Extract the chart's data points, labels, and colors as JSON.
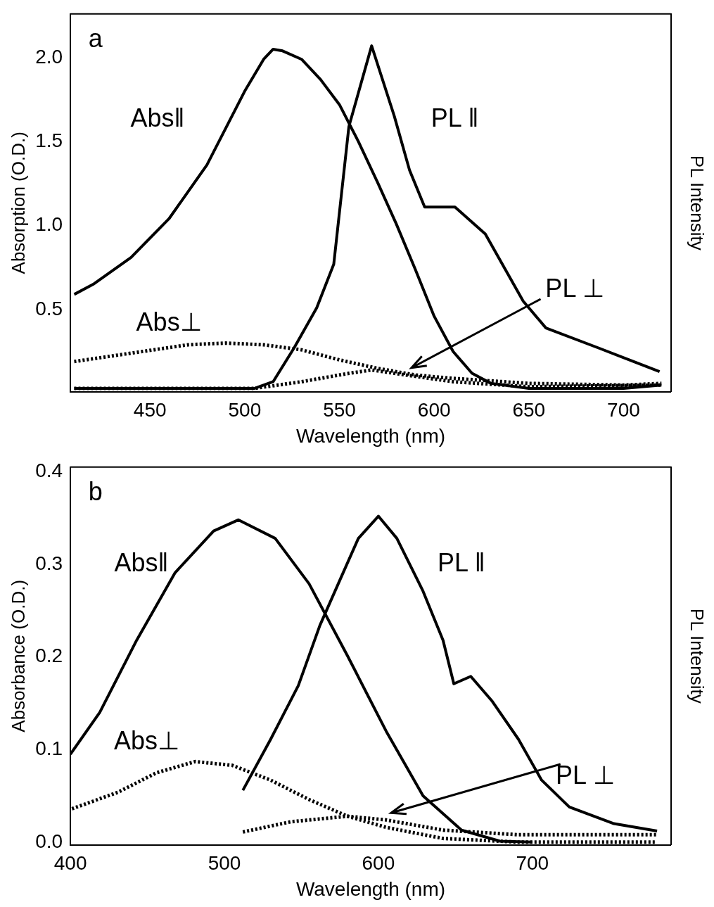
{
  "chart_data": [
    {
      "type": "line",
      "xlabel": "Wavelength (nm)",
      "ylabel": "Absorption (O.D.)",
      "y2label": "PL Intensity",
      "xlim": [
        408,
        725
      ],
      "ylim": [
        0.01,
        2.26
      ],
      "xticks": [
        450,
        500,
        550,
        600,
        650,
        700
      ],
      "yticks": [
        0.5,
        {
          "value": 1,
          "label": "1.0"
        },
        1.5,
        {
          "value": 2,
          "label": "2.0"
        }
      ],
      "legend": false,
      "grid": false,
      "annotations": [
        "a",
        "Abs‖",
        "PL ‖",
        "Abs⊥",
        "PL ⊥"
      ],
      "series": [
        {
          "color": "#000000",
          "line_style": "solid",
          "x": [
            410,
            420,
            440,
            460,
            480,
            500,
            510,
            515,
            520,
            530,
            540,
            550,
            560,
            570,
            580,
            590,
            600,
            610,
            620,
            630,
            650,
            700,
            720
          ],
          "values": [
            0.59,
            0.65,
            0.81,
            1.04,
            1.36,
            1.8,
            1.99,
            2.05,
            2.04,
            1.99,
            1.87,
            1.72,
            1.5,
            1.26,
            1.01,
            0.74,
            0.46,
            0.25,
            0.12,
            0.06,
            0.03,
            0.03,
            0.05
          ]
        },
        {
          "color": "#000000",
          "line_style": "solid",
          "x": [
            410,
            505,
            515,
            526,
            538,
            547,
            555,
            567,
            579,
            587,
            595,
            611,
            627,
            647,
            659,
            687,
            719
          ],
          "values": [
            0.03,
            0.03,
            0.07,
            0.27,
            0.51,
            0.77,
            1.59,
            2.07,
            1.65,
            1.33,
            1.11,
            1.11,
            0.95,
            0.55,
            0.39,
            0.27,
            0.13
          ]
        },
        {
          "color": "#000000",
          "line_style": "dotted",
          "x": [
            410,
            440,
            470,
            490,
            510,
            530,
            550,
            570,
            590,
            610,
            650,
            700,
            720
          ],
          "values": [
            0.19,
            0.24,
            0.29,
            0.3,
            0.29,
            0.26,
            0.2,
            0.15,
            0.11,
            0.09,
            0.06,
            0.05,
            0.06
          ]
        },
        {
          "color": "#000000",
          "line_style": "dotted",
          "x": [
            410,
            505,
            530,
            555,
            567,
            585,
            610,
            650,
            720
          ],
          "values": [
            0.03,
            0.03,
            0.07,
            0.12,
            0.14,
            0.11,
            0.07,
            0.04,
            0.05
          ]
        }
      ]
    },
    {
      "type": "line",
      "xlabel": "Wavelength (nm)",
      "ylabel": "Absorbance (O.D.)",
      "y2label": "PL Intensity",
      "xlim": [
        400,
        790
      ],
      "ylim": [
        -0.003,
        0.405
      ],
      "xticks": [
        400,
        500,
        600,
        700
      ],
      "yticks": [
        {
          "value": 0,
          "label": "0.0"
        },
        0.1,
        0.2,
        0.3,
        0.4
      ],
      "legend": false,
      "grid": false,
      "annotations": [
        "b",
        "Abs‖",
        "PL ‖",
        "Abs⊥",
        "PL ⊥"
      ],
      "series": [
        {
          "color": "#000000",
          "line_style": "solid",
          "x": [
            400,
            419,
            443,
            468,
            493,
            509,
            533,
            555,
            580,
            605,
            629,
            654,
            679,
            700
          ],
          "values": [
            0.095,
            0.14,
            0.218,
            0.291,
            0.336,
            0.348,
            0.328,
            0.279,
            0.201,
            0.12,
            0.05,
            0.013,
            0.001,
            0.0
          ]
        },
        {
          "color": "#000000",
          "line_style": "solid",
          "x": [
            512,
            530,
            548,
            562,
            575,
            587,
            600,
            612,
            629,
            642,
            649,
            660,
            674,
            691,
            706,
            724,
            753,
            781
          ],
          "values": [
            0.056,
            0.111,
            0.169,
            0.234,
            0.283,
            0.328,
            0.352,
            0.328,
            0.271,
            0.218,
            0.171,
            0.179,
            0.152,
            0.111,
            0.067,
            0.038,
            0.02,
            0.012
          ]
        },
        {
          "color": "#000000",
          "line_style": "dotted",
          "x": [
            401,
            431,
            456,
            481,
            505,
            530,
            555,
            580,
            605,
            642,
            691,
            780
          ],
          "values": [
            0.036,
            0.054,
            0.075,
            0.087,
            0.083,
            0.067,
            0.046,
            0.028,
            0.016,
            0.004,
            0.0,
            0.0
          ]
        },
        {
          "color": "#000000",
          "line_style": "dotted",
          "x": [
            512,
            543,
            580,
            605,
            642,
            691,
            781
          ],
          "values": [
            0.011,
            0.022,
            0.028,
            0.024,
            0.013,
            0.008,
            0.008
          ]
        }
      ]
    }
  ]
}
